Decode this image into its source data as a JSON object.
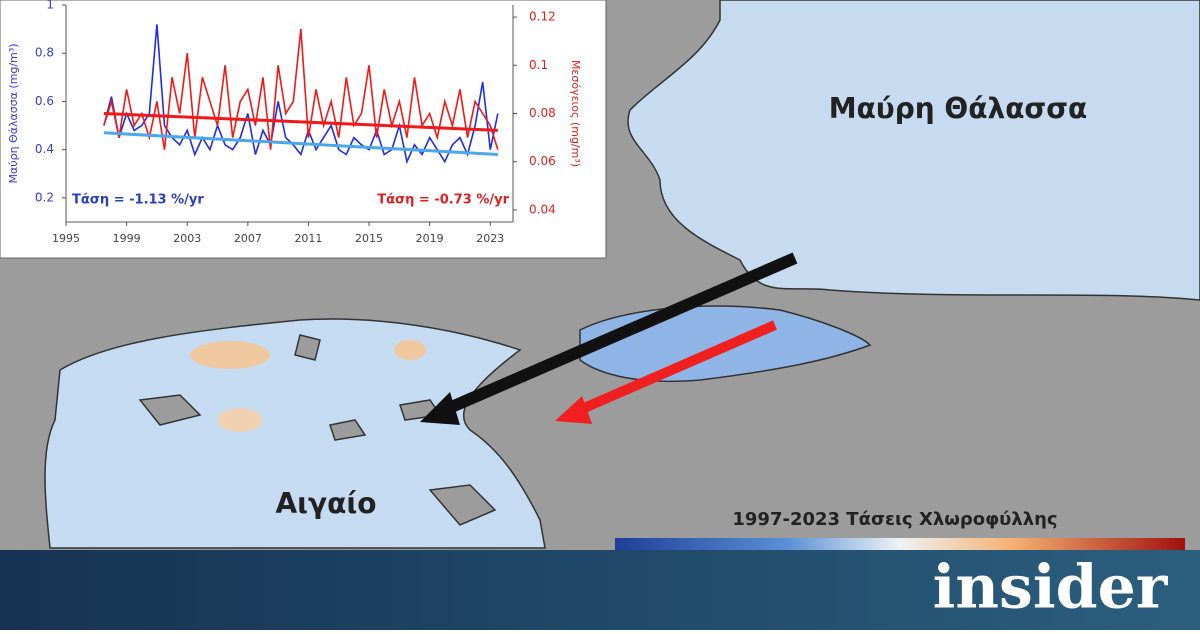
{
  "chart_data": {
    "type": "line",
    "y_label": "Μαύρη Θάλασσα (mg/m³)",
    "y2_label": "Μεσόγειος (mg/m³)",
    "annotations": [
      "Τάση = -1.13 %/yr",
      "Τάση = -0.73 %/yr"
    ],
    "x": [
      1997.5,
      1998,
      1998.5,
      1999,
      1999.5,
      2000,
      2000.5,
      2001,
      2001.5,
      2002,
      2002.5,
      2003,
      2003.5,
      2004,
      2004.5,
      2005,
      2005.5,
      2006,
      2006.5,
      2007,
      2007.5,
      2008,
      2008.5,
      2009,
      2009.5,
      2010,
      2010.5,
      2011,
      2011.5,
      2012,
      2012.5,
      2013,
      2013.5,
      2014,
      2014.5,
      2015,
      2015.5,
      2016,
      2016.5,
      2017,
      2017.5,
      2018,
      2018.5,
      2019,
      2019.5,
      2020,
      2020.5,
      2021,
      2021.5,
      2022,
      2022.5,
      2023,
      2023.5
    ],
    "series": [
      {
        "color": "#1f2ee6",
        "values": [
          0.5,
          0.62,
          0.45,
          0.55,
          0.48,
          0.5,
          0.55,
          0.92,
          0.5,
          0.45,
          0.42,
          0.48,
          0.38,
          0.45,
          0.4,
          0.5,
          0.42,
          0.4,
          0.45,
          0.55,
          0.38,
          0.48,
          0.42,
          0.6,
          0.45,
          0.42,
          0.38,
          0.48,
          0.4,
          0.45,
          0.5,
          0.4,
          0.38,
          0.45,
          0.42,
          0.4,
          0.48,
          0.38,
          0.4,
          0.5,
          0.35,
          0.42,
          0.38,
          0.45,
          0.4,
          0.35,
          0.42,
          0.45,
          0.38,
          0.5,
          0.68,
          0.4,
          0.55
        ]
      },
      {
        "color": "#f01818",
        "axis": "y2",
        "values": [
          0.075,
          0.085,
          0.07,
          0.09,
          0.075,
          0.08,
          0.07,
          0.085,
          0.065,
          0.095,
          0.08,
          0.105,
          0.07,
          0.095,
          0.085,
          0.075,
          0.1,
          0.07,
          0.085,
          0.09,
          0.075,
          0.095,
          0.065,
          0.1,
          0.08,
          0.085,
          0.115,
          0.07,
          0.09,
          0.075,
          0.085,
          0.07,
          0.095,
          0.075,
          0.08,
          0.1,
          0.07,
          0.09,
          0.075,
          0.085,
          0.07,
          0.095,
          0.075,
          0.08,
          0.07,
          0.085,
          0.075,
          0.09,
          0.07,
          0.085,
          0.08,
          0.075,
          0.065
        ]
      },
      {
        "color": "#4aa8e8",
        "x": [
          1997.5,
          2023.5
        ],
        "values": [
          0.47,
          0.38
        ]
      },
      {
        "color": "#f01818",
        "axis": "y2",
        "x": [
          1997.5,
          2023.5
        ],
        "values": [
          0.08,
          0.073
        ]
      }
    ],
    "xlim": [
      1995,
      2024.5
    ],
    "xticks": [
      1995,
      1999,
      2003,
      2007,
      2011,
      2015,
      2019,
      2023
    ],
    "ylim": [
      0.1,
      1
    ],
    "yticks": [
      0.2,
      0.4,
      0.6,
      0.8,
      1
    ],
    "y2lim": [
      0.035,
      0.125
    ],
    "y2ticks": [
      0.04,
      0.06,
      0.08,
      0.1,
      0.12
    ]
  },
  "map_labels": [
    "Μαύρη Θάλασσα",
    "Αιγαίο"
  ],
  "colorbar_title": "1997-2023 Τάσεις Χλωροφύλλης",
  "brand": "insider"
}
